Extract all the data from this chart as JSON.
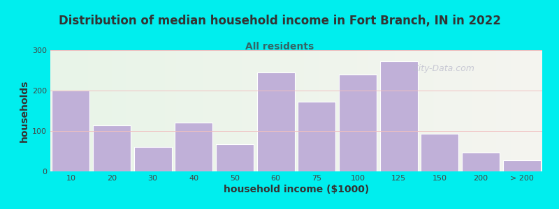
{
  "title": "Distribution of median household income in Fort Branch, IN in 2022",
  "subtitle": "All residents",
  "xlabel": "household income ($1000)",
  "ylabel": "households",
  "background_color": "#00EEEE",
  "bar_color": "#C0B0D8",
  "bar_edge_color": "#ffffff",
  "categories": [
    "10",
    "20",
    "30",
    "40",
    "50",
    "60",
    "75",
    "100",
    "125",
    "150",
    "200",
    "> 200"
  ],
  "values": [
    200,
    113,
    60,
    120,
    68,
    245,
    172,
    240,
    273,
    93,
    47,
    27
  ],
  "ylim": [
    0,
    300
  ],
  "yticks": [
    0,
    100,
    200,
    300
  ],
  "watermark": "City-Data.com",
  "title_fontsize": 12,
  "subtitle_fontsize": 10,
  "axis_label_fontsize": 10,
  "title_color": "#333333",
  "subtitle_color": "#336666"
}
